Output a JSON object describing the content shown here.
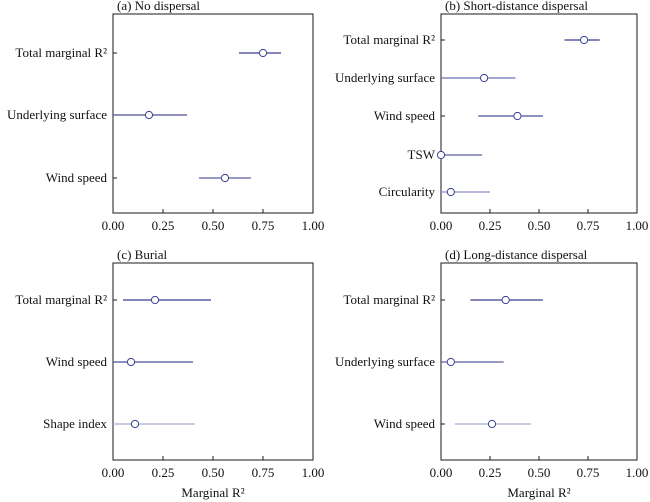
{
  "chart_data": [
    {
      "type": "forest",
      "title": "(a) No dispersal",
      "xlabel": "",
      "xlim": [
        0,
        1
      ],
      "xticks": [
        "0.00",
        "0.25",
        "0.50",
        "0.75",
        "1.00"
      ],
      "categories": [
        "Total marginal R²",
        "Underlying surface",
        "Wind speed"
      ],
      "estimates": [
        0.75,
        0.18,
        0.56
      ],
      "ci_low": [
        0.63,
        0.0,
        0.43
      ],
      "ci_high": [
        0.84,
        0.37,
        0.69
      ],
      "line_colors": [
        "#3a3f8f",
        "#4a4f99",
        "#5a5fa5"
      ]
    },
    {
      "type": "forest",
      "title": "(b) Short-distance dispersal",
      "xlabel": "",
      "xlim": [
        0,
        1
      ],
      "xticks": [
        "0.00",
        "0.25",
        "0.50",
        "0.75",
        "1.00"
      ],
      "categories": [
        "Total marginal R²",
        "Underlying surface",
        "Wind speed",
        "TSW",
        "Circularity"
      ],
      "estimates": [
        0.73,
        0.22,
        0.39,
        0.0,
        0.05
      ],
      "ci_low": [
        0.63,
        0.0,
        0.19,
        0.0,
        0.0
      ],
      "ci_high": [
        0.81,
        0.38,
        0.52,
        0.21,
        0.25
      ],
      "line_colors": [
        "#3a3f8f",
        "#6a6fb0",
        "#4a4f99",
        "#5a5fa5",
        "#8a8fc4"
      ]
    },
    {
      "type": "forest",
      "title": "(c) Burial",
      "xlabel": "Marginal R²",
      "xlim": [
        0,
        1
      ],
      "xticks": [
        "0.00",
        "0.25",
        "0.50",
        "0.75",
        "1.00"
      ],
      "categories": [
        "Total marginal R²",
        "Wind speed",
        "Shape index"
      ],
      "estimates": [
        0.21,
        0.09,
        0.11
      ],
      "ci_low": [
        0.05,
        0.0,
        0.0
      ],
      "ci_high": [
        0.49,
        0.4,
        0.41
      ],
      "line_colors": [
        "#3a3f8f",
        "#4a4f99",
        "#a8acd6"
      ]
    },
    {
      "type": "forest",
      "title": "(d) Long-distance dispersal",
      "xlabel": "Marginal R²",
      "xlim": [
        0,
        1
      ],
      "xticks": [
        "0.00",
        "0.25",
        "0.50",
        "0.75",
        "1.00"
      ],
      "categories": [
        "Total marginal R²",
        "Underlying surface",
        "Wind speed"
      ],
      "estimates": [
        0.33,
        0.05,
        0.26
      ],
      "ci_low": [
        0.15,
        0.0,
        0.07
      ],
      "ci_high": [
        0.52,
        0.32,
        0.46
      ],
      "line_colors": [
        "#3a3f8f",
        "#5a5fa5",
        "#a8acd6"
      ]
    }
  ],
  "colors": {
    "frame": "#1a1a1a",
    "marker_edge": "#3a3f8f",
    "marker_fill": "#ffffff"
  }
}
